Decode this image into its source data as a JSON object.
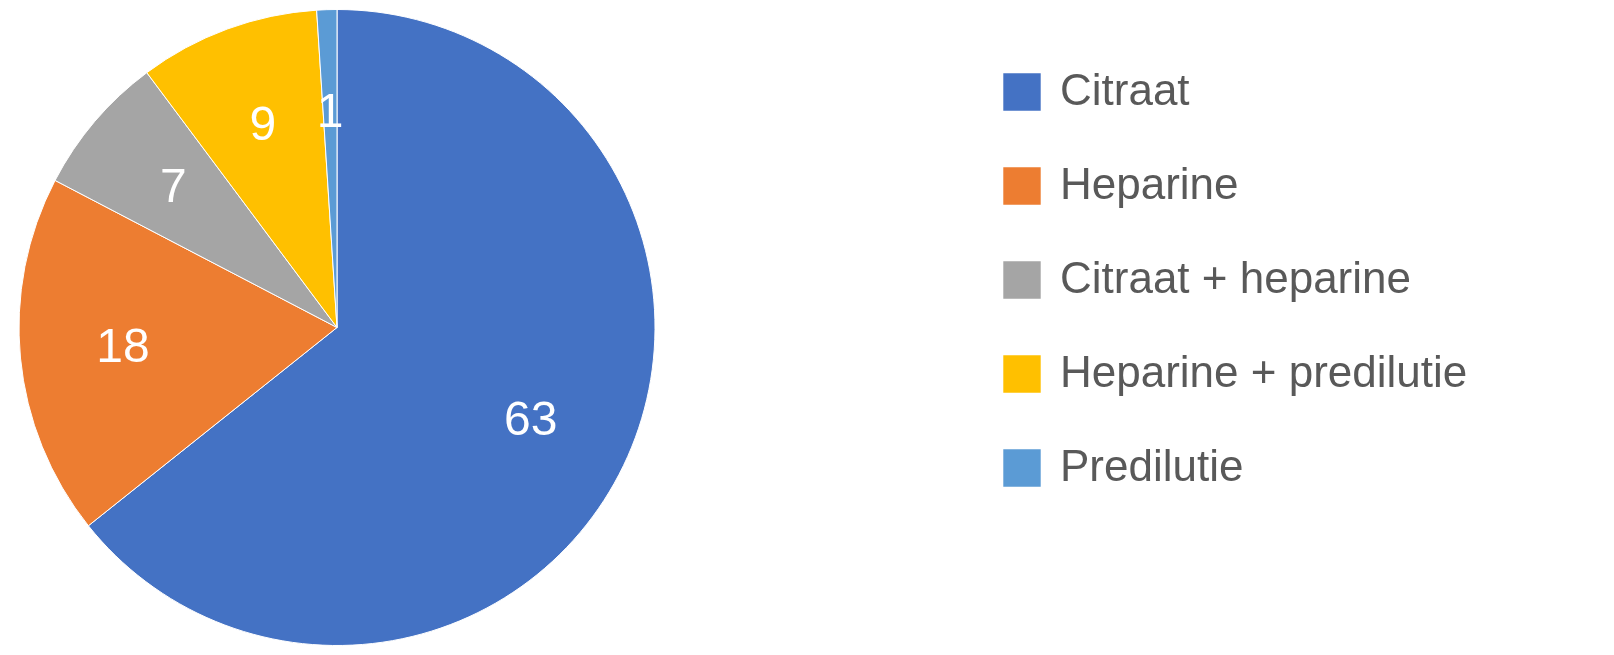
{
  "chart_data": {
    "type": "pie",
    "categories": [
      "Citraat",
      "Heparine",
      "Citraat + heparine",
      "Heparine + predilutie",
      "Predilutie"
    ],
    "values": [
      63,
      18,
      7,
      9,
      1
    ],
    "colors": [
      "#4472c4",
      "#ed7d31",
      "#a5a5a5",
      "#ffc000",
      "#5b9bd5"
    ],
    "data_labels": true,
    "legend": "right"
  }
}
